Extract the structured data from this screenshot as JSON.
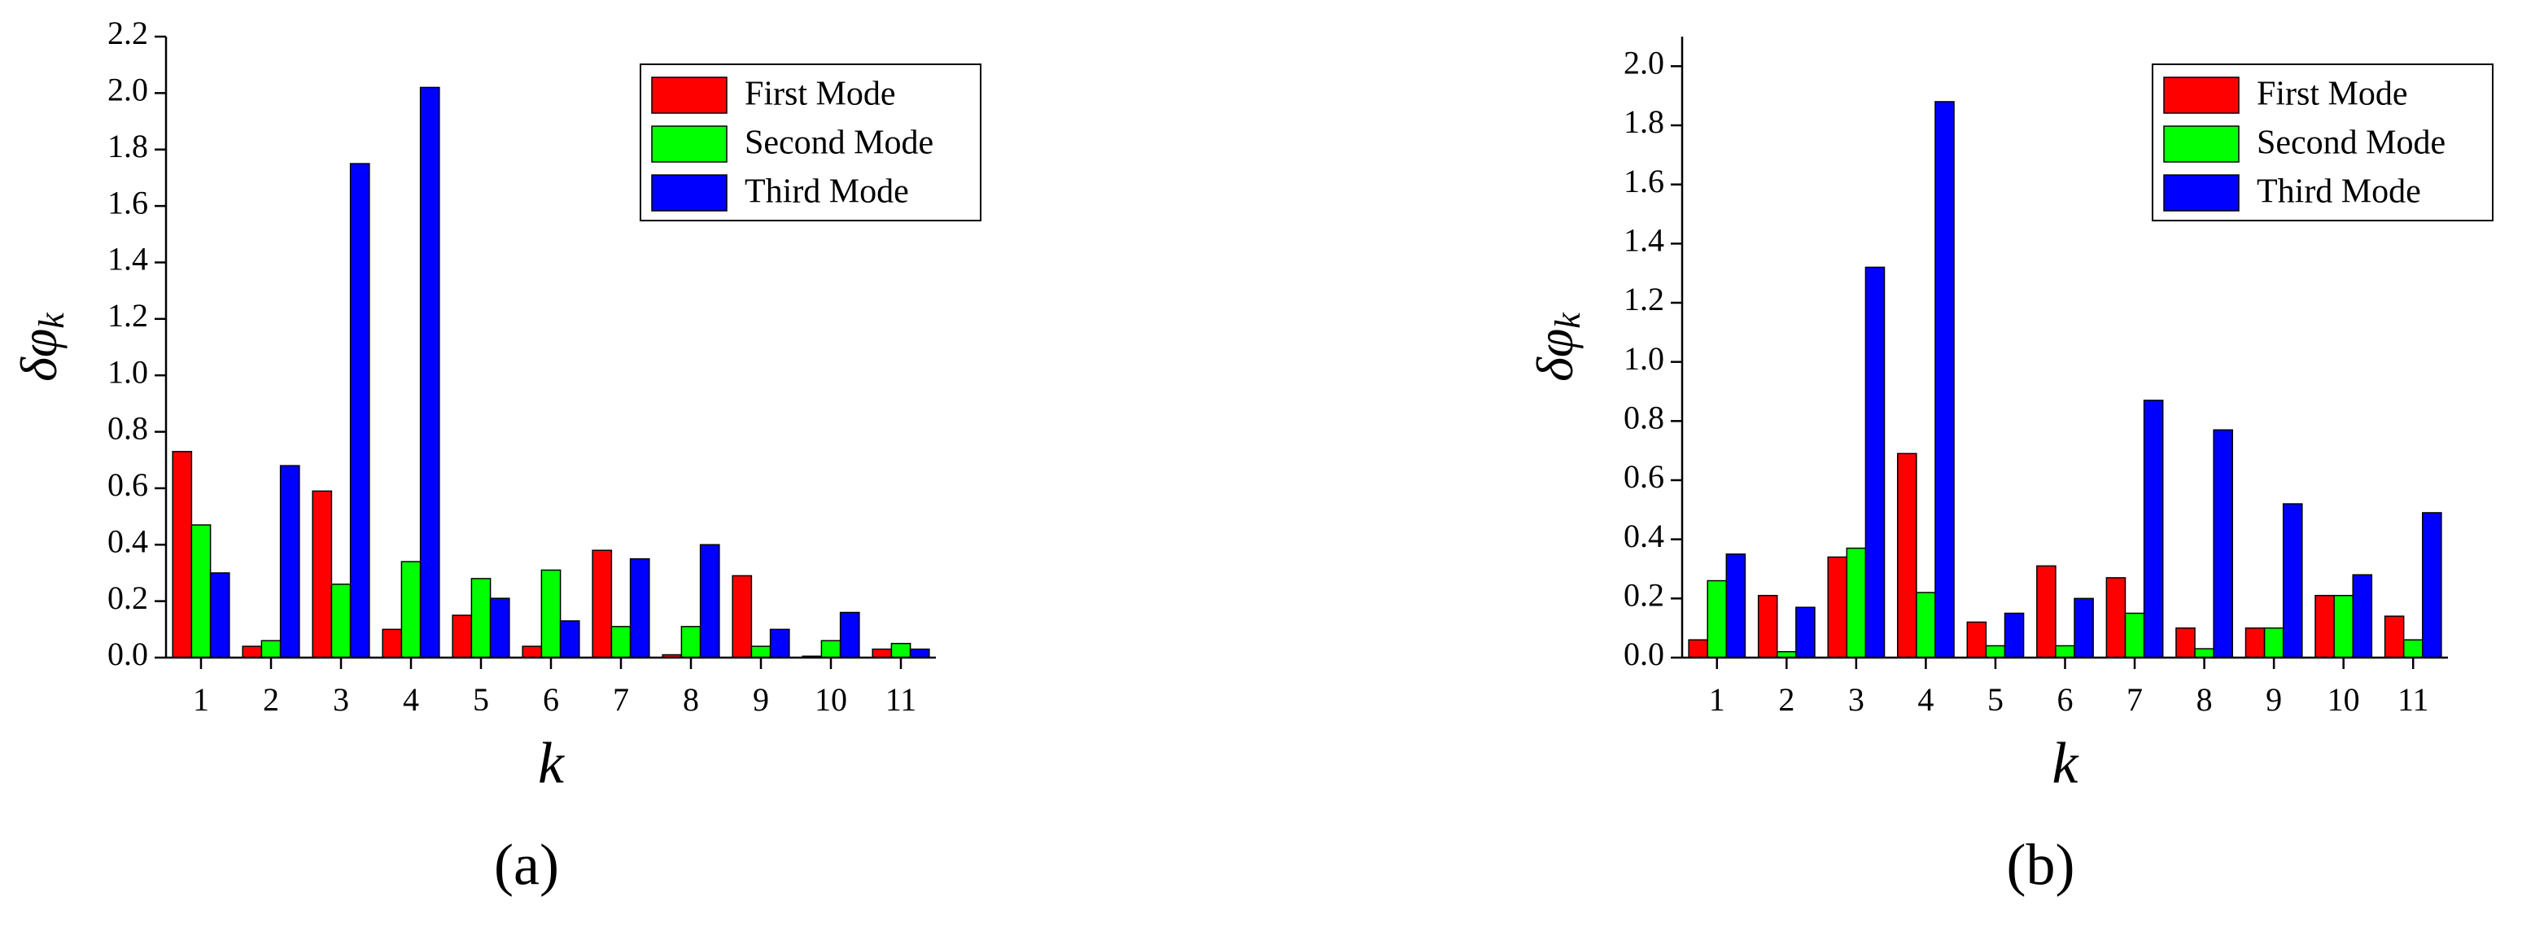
{
  "chart_data": [
    {
      "type": "bar",
      "label": "(a)",
      "xlabel": "k",
      "ylabel": "δφ",
      "ylabel_sub": "k",
      "categories": [
        "1",
        "2",
        "3",
        "4",
        "5",
        "6",
        "7",
        "8",
        "9",
        "10",
        "11"
      ],
      "series": [
        {
          "name": "First Mode",
          "color": "#ff0000",
          "values": [
            0.73,
            0.04,
            0.59,
            0.1,
            0.15,
            0.04,
            0.38,
            0.01,
            0.29,
            0.005,
            0.03
          ]
        },
        {
          "name": "Second Mode",
          "color": "#00ff00",
          "values": [
            0.47,
            0.06,
            0.26,
            0.34,
            0.28,
            0.31,
            0.11,
            0.11,
            0.04,
            0.06,
            0.05
          ]
        },
        {
          "name": "Third Mode",
          "color": "#0000ff",
          "values": [
            0.3,
            0.68,
            1.75,
            2.02,
            0.21,
            0.13,
            0.35,
            0.4,
            0.1,
            0.16,
            0.03
          ]
        }
      ],
      "ylim": [
        0,
        2.2
      ],
      "yticks": [
        {
          "value": 0,
          "label": "0.0"
        },
        0.2,
        0.4,
        0.6,
        0.8,
        {
          "value": 1,
          "label": "1.0"
        },
        1.2,
        1.4,
        1.6,
        1.8,
        {
          "value": 2,
          "label": "2.0"
        },
        2.2
      ],
      "legend": "upper right"
    },
    {
      "type": "bar",
      "label": "(b)",
      "xlabel": "k",
      "ylabel": "δφ",
      "ylabel_sub": "k",
      "categories": [
        "1",
        "2",
        "3",
        "4",
        "5",
        "6",
        "7",
        "8",
        "9",
        "10",
        "11"
      ],
      "series": [
        {
          "name": "First Mode",
          "color": "#ff0000",
          "values": [
            0.06,
            0.21,
            0.34,
            0.69,
            0.12,
            0.31,
            0.27,
            0.1,
            0.1,
            0.21,
            0.14
          ]
        },
        {
          "name": "Second Mode",
          "color": "#00ff00",
          "values": [
            0.26,
            0.02,
            0.37,
            0.22,
            0.04,
            0.04,
            0.15,
            0.03,
            0.1,
            0.21,
            0.06
          ]
        },
        {
          "name": "Third Mode",
          "color": "#0000ff",
          "values": [
            0.35,
            0.17,
            1.32,
            1.88,
            0.15,
            0.2,
            0.87,
            0.77,
            0.52,
            0.28,
            0.49
          ]
        }
      ],
      "ylim": [
        0,
        2.1
      ],
      "yticks": [
        {
          "value": 0,
          "label": "0.0"
        },
        0.2,
        0.4,
        0.6,
        0.8,
        {
          "value": 1,
          "label": "1.0"
        },
        1.2,
        1.4,
        1.6,
        1.8,
        {
          "value": 2,
          "label": "2.0"
        }
      ],
      "legend": "upper right"
    }
  ]
}
